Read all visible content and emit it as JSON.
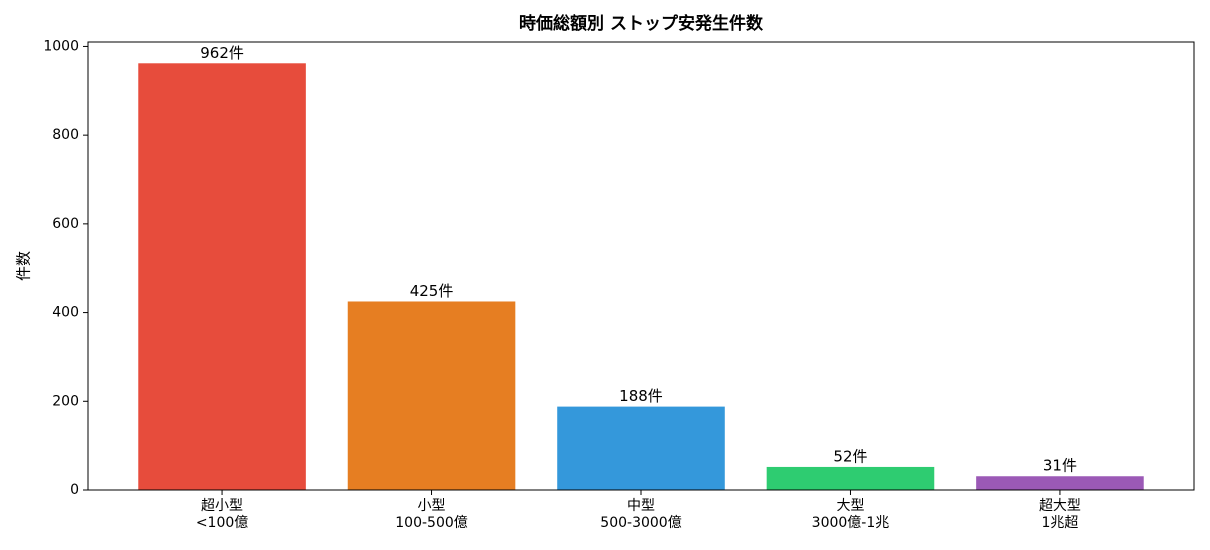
{
  "chart_data": {
    "type": "bar",
    "title": "時価総額別 ストップ安発生件数",
    "y_label": "件数",
    "categories": [
      "超小型\n<100億",
      "小型\n100-500億",
      "中型\n500-3000億",
      "大型\n3000億-1兆",
      "超大型\n1兆超"
    ],
    "values": [
      962,
      425,
      188,
      52,
      31
    ],
    "value_labels": [
      "962件",
      "425件",
      "188件",
      "52件",
      "31件"
    ],
    "colors": [
      "#e74c3c",
      "#e67e22",
      "#3498db",
      "#2ecc71",
      "#9b59b6"
    ],
    "ylim": [
      0,
      1010
    ],
    "yticks": [
      0,
      200,
      400,
      600,
      800,
      1000
    ],
    "grid": false
  }
}
